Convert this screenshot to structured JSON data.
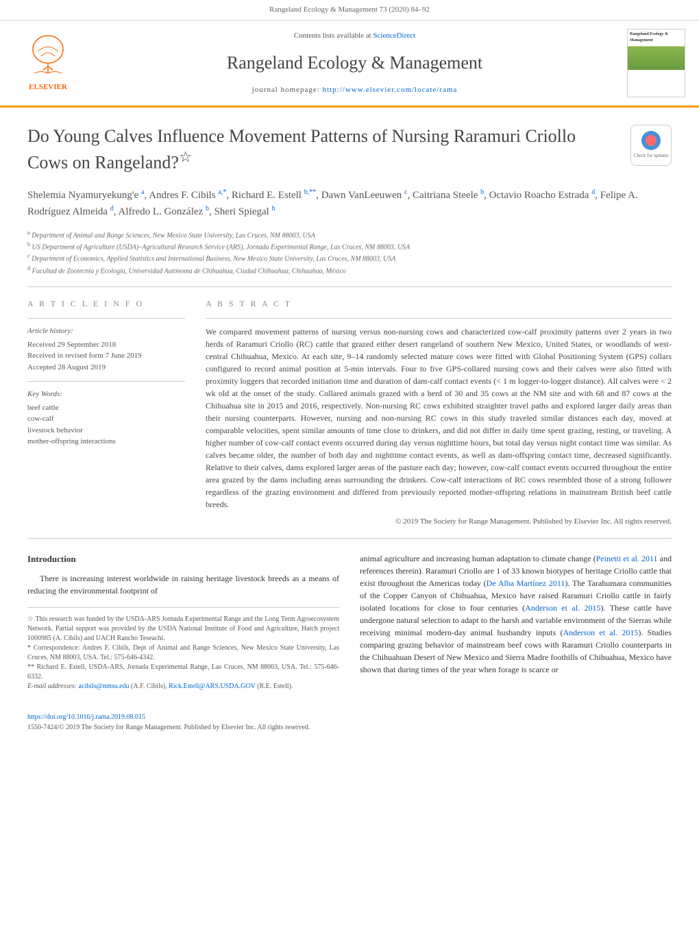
{
  "top_bar": "Rangeland Ecology & Management 73 (2020) 84–92",
  "header": {
    "contents_prefix": "Contents lists available at ",
    "contents_link": "ScienceDirect",
    "journal_title": "Rangeland Ecology & Management",
    "homepage_prefix": "journal homepage: ",
    "homepage_link": "http://www.elsevier.com/locate/rama",
    "elsevier": "ELSEVIER",
    "cover_text": "Rangeland Ecology & Management"
  },
  "article": {
    "title": "Do Young Calves Influence Movement Patterns of Nursing Raramuri Criollo Cows on Rangeland?",
    "title_star": "☆",
    "updates_text": "Check for updates"
  },
  "authors_html": "Shelemia Nyamuryekung'e <sup>a</sup>, Andres F. Cibils <sup>a,*</sup>, Richard E. Estell <sup>b,**</sup>, Dawn VanLeeuwen <sup>c</sup>, Caitriana Steele <sup>b</sup>, Octavio Roacho Estrada <sup>d</sup>, Felipe A. Rodríguez Almeida <sup>d</sup>, Alfredo L. González <sup>b</sup>, Sheri Spiegal <sup>b</sup>",
  "affiliations": {
    "a": "Department of Animal and Range Sciences, New Mexico State University, Las Cruces, NM 88003, USA",
    "b": "US Department of Agriculture (USDA)–Agricultural Research Service (ARS), Jornada Experimental Range, Las Cruces, NM 88003, USA",
    "c": "Department of Economics, Applied Statistics and International Business, New Mexico State University, Las Cruces, NM 88003, USA",
    "d": "Facultad de Zootecnia y Ecología, Universidad Autónoma de Chihuahua, Ciudad Chihuahua, Chihuahua, México"
  },
  "article_info": {
    "heading": "A R T I C L E   I N F O",
    "history_label": "Article history:",
    "history": "Received 29 September 2018\nReceived in revised form 7 June 2019\nAccepted 28 August 2019",
    "keywords_label": "Key Words:",
    "keywords": "beef cattle\ncow-calf\nlivestock behavior\nmother-offspring interactions"
  },
  "abstract": {
    "heading": "A B S T R A C T",
    "text": "We compared movement patterns of nursing versus non-nursing cows and characterized cow-calf proximity patterns over 2 years in two herds of Raramuri Criollo (RC) cattle that grazed either desert rangeland of southern New Mexico, United States, or woodlands of west-central Chihuahua, Mexico. At each site, 9–14 randomly selected mature cows were fitted with Global Positioning System (GPS) collars configured to record animal position at 5-min intervals. Four to five GPS-collared nursing cows and their calves were also fitted with proximity loggers that recorded initiation time and duration of dam-calf contact events (< 1 m logger-to-logger distance). All calves were < 2 wk old at the onset of the study. Collared animals grazed with a herd of 30 and 35 cows at the NM site and with 68 and 87 cows at the Chihuahua site in 2015 and 2016, respectively. Non-nursing RC cows exhibited straighter travel paths and explored larger daily areas than their nursing counterparts. However, nursing and non-nursing RC cows in this study traveled similar distances each day, moved at comparable velocities, spent similar amounts of time close to drinkers, and did not differ in daily time spent grazing, resting, or traveling. A higher number of cow-calf contact events occurred during day versus nighttime hours, but total day versus night contact time was similar. As calves became older, the number of both day and nighttime contact events, as well as dam-offspring contact time, decreased significantly. Relative to their calves, dams explored larger areas of the pasture each day; however, cow-calf contact events occurred throughout the entire area grazed by the dams including areas surrounding the drinkers. Cow-calf interactions of RC cows resembled those of a strong follower regardless of the grazing environment and differed from previously reported mother-offspring relations in mainstream British beef cattle breeds.",
    "copyright": "© 2019 The Society for Range Management. Published by Elsevier Inc. All rights reserved."
  },
  "introduction": {
    "heading": "Introduction",
    "col1": "There is increasing interest worldwide in raising heritage livestock breeds as a means of reducing the environmental footprint of",
    "col2_p1": "animal agriculture and increasing human adaptation to climate change (",
    "col2_ref1": "Peinetti et al. 2011",
    "col2_p2": " and references therein). Raramuri Criollo are 1 of 33 known biotypes of heritage Criollo cattle that exist throughout the Americas today (",
    "col2_ref2": "De Alba Martínez 2011",
    "col2_p3": "). The Tarahumara communities of the Copper Canyon of Chihuahua, Mexico have raised Raramuri Criollo cattle in fairly isolated locations for close to four centuries (",
    "col2_ref3": "Anderson et al. 2015",
    "col2_p4": "). These cattle have undergone natural selection to adapt to the harsh and variable environment of the Sierras while receiving minimal modern-day animal husbandry inputs (",
    "col2_ref4": "Anderson et al. 2015",
    "col2_p5": "). Studies comparing grazing behavior of mainstream beef cows with Raramuri Criollo counterparts in the Chihuahuan Desert of New Mexico and Sierra Madre foothills of Chihuahua, Mexico have shown that during times of the year when forage is scarce or"
  },
  "footnotes": {
    "star": "☆ This research was funded by the USDA-ARS Jornada Experimental Range and the Long Term Agroecosystem Network. Partial support was provided by the USDA National Institute of Food and Agriculture, Hatch project 1000985 (A. Cibils) and UACH Rancho Teseachi.",
    "corr1": "* Correspondence: Andres F. Cibils, Dept of Animal and Range Sciences, New Mexico State University, Las Cruces, NM 88003, USA. Tel.: 575-646-4342.",
    "corr2": "** Richard E. Estell, USDA-ARS, Jornada Experimental Range, Las Cruces, NM 88003, USA. Tel.: 575-646-6332.",
    "email_label": "E-mail addresses: ",
    "email1": "acibils@nmsu.edu",
    "email1_name": " (A.F. Cibils), ",
    "email2": "Rick.Estell@ARS.USDA.GOV",
    "email2_name": " (R.E. Estell)."
  },
  "footer": {
    "doi": "https://doi.org/10.1016/j.rama.2019.08.015",
    "issn": "1550-7424/© 2019 The Society for Range Management. Published by Elsevier Inc. All rights reserved."
  },
  "colors": {
    "accent": "#f39c12",
    "link": "#0066cc",
    "text": "#444",
    "muted": "#888"
  }
}
